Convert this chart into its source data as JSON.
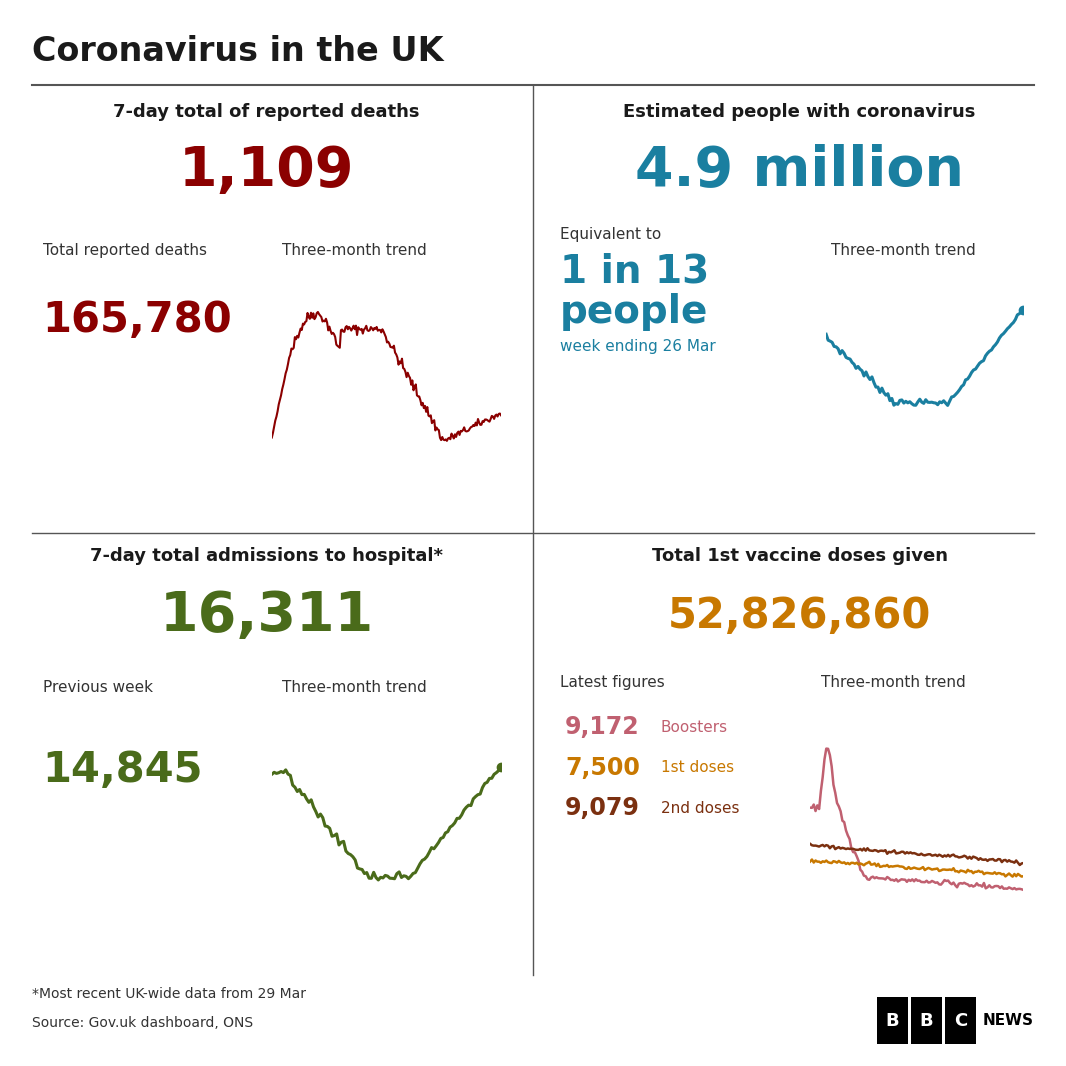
{
  "title": "Coronavirus in the UK",
  "bg_color": "#ffffff",
  "title_color": "#1a1a1a",
  "divider_color": "#555555",
  "q1_header": "7-day total of reported deaths",
  "q1_big_number": "1,109",
  "q1_big_color": "#8b0000",
  "q1_sub_label": "Total reported deaths",
  "q1_sub_number": "165,780",
  "q1_sub_color": "#8b0000",
  "q1_trend_label": "Three-month trend",
  "q1_trend_color": "#8b0000",
  "q2_header": "Estimated people with coronavirus",
  "q2_big_number": "4.9 million",
  "q2_big_color": "#1a7fa0",
  "q2_sub_label1": "Equivalent to",
  "q2_sub_label2": "1 in 13",
  "q2_sub_label3": "people",
  "q2_sub_label4": "week ending 26 Mar",
  "q2_sub_color": "#1a7fa0",
  "q2_trend_label": "Three-month trend",
  "q2_trend_color": "#1a7fa0",
  "q3_header": "7-day total admissions to hospital*",
  "q3_big_number": "16,311",
  "q3_big_color": "#4a6b1a",
  "q3_sub_label": "Previous week",
  "q3_sub_number": "14,845",
  "q3_sub_color": "#4a6b1a",
  "q3_trend_label": "Three-month trend",
  "q3_trend_color": "#4a6b1a",
  "q4_header": "Total 1st vaccine doses given",
  "q4_big_number": "52,826,860",
  "q4_big_color": "#c87800",
  "q4_sub_label": "Latest figures",
  "q4_trend_label": "Three-month trend",
  "q4_vaccine_entries": [
    {
      "value": "9,172",
      "label": "Boosters",
      "value_color": "#c06070",
      "label_color": "#c06070"
    },
    {
      "value": "7,500",
      "label": "1st doses",
      "value_color": "#c87800",
      "label_color": "#c87800"
    },
    {
      "value": "9,079",
      "label": "2nd doses",
      "value_color": "#7b3010",
      "label_color": "#7b3010"
    }
  ],
  "q4_trend_colors": [
    "#c06070",
    "#c87800",
    "#7b3010"
  ],
  "footer1": "*Most recent UK-wide data from 29 Mar",
  "footer2": "Source: Gov.uk dashboard, ONS",
  "text_color": "#333333"
}
